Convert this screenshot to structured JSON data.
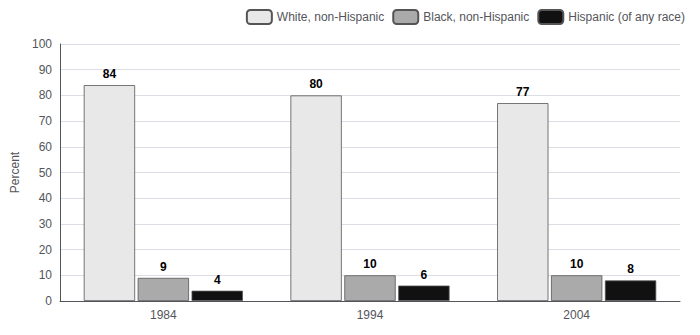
{
  "chart_data": {
    "type": "bar",
    "categories": [
      "1984",
      "1994",
      "2004"
    ],
    "series": [
      {
        "name": "White, non-Hispanic",
        "color": "#e8e8e8",
        "values": [
          84,
          80,
          77
        ]
      },
      {
        "name": "Black, non-Hispanic",
        "color": "#aaaaaa",
        "values": [
          9,
          10,
          10
        ]
      },
      {
        "name": "Hispanic (of any race)",
        "color": "#111111",
        "values": [
          4,
          6,
          8
        ]
      }
    ],
    "y_label": "Percent",
    "ylim": [
      0,
      100
    ],
    "yticks": [
      0,
      10,
      20,
      30,
      40,
      50,
      60,
      70,
      80,
      90,
      100
    ],
    "grid": true,
    "legend": "upper right",
    "data_labels": true
  }
}
